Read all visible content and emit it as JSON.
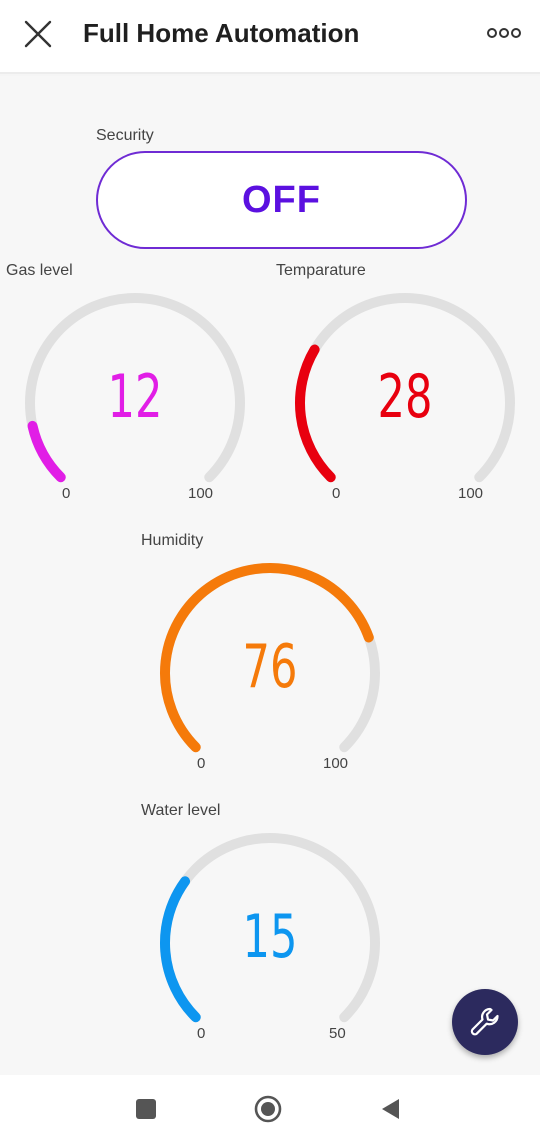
{
  "header": {
    "title": "Full Home Automation",
    "close_icon": "close-icon",
    "more_icon": "more-horizontal-icon"
  },
  "security": {
    "label": "Security",
    "state": "OFF",
    "color": "#5b10e0"
  },
  "gauges": [
    {
      "id": "gas",
      "label": "Gas level",
      "value": "12",
      "value_num": 12,
      "min": "0",
      "max": "100",
      "max_num": 100,
      "color": "#e11ee6"
    },
    {
      "id": "temperature",
      "label": "Temparature",
      "value": "28",
      "value_num": 28,
      "min": "0",
      "max": "100",
      "max_num": 100,
      "color": "#e8000f"
    },
    {
      "id": "humidity",
      "label": "Humidity",
      "value": "76",
      "value_num": 76,
      "min": "0",
      "max": "100",
      "max_num": 100,
      "color": "#f57a0a"
    },
    {
      "id": "water",
      "label": "Water level",
      "value": "15",
      "value_num": 15,
      "min": "0",
      "max": "50",
      "max_num": 50,
      "color": "#0d96f0"
    }
  ],
  "fab": {
    "icon": "wrench-icon"
  },
  "nav": {
    "recent_icon": "square-icon",
    "home_icon": "circle-icon",
    "back_icon": "triangle-back-icon"
  }
}
